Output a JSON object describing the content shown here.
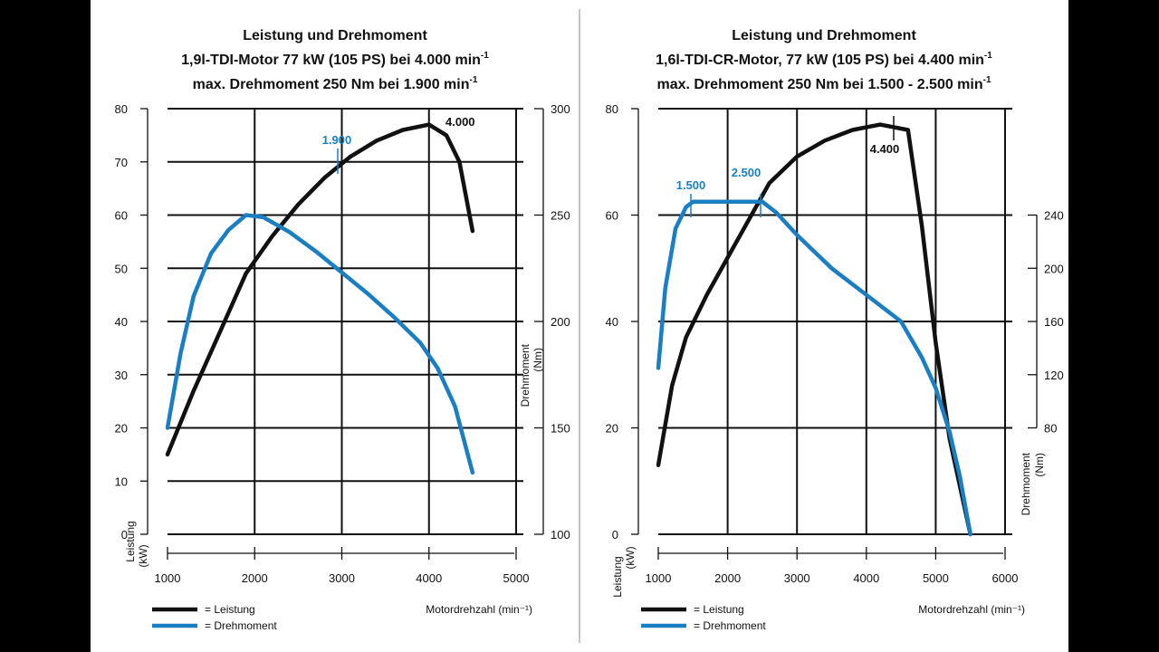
{
  "colors": {
    "power": "#111111",
    "torque": "#1a7fc2",
    "grid": "#111111",
    "divider": "#8a8a8a"
  },
  "chart_data": [
    {
      "type": "line",
      "title": "Leistung und Drehmoment",
      "subtitle_main": "1,9l-TDI-Motor 77 kW (105 PS) bei 4.000 min",
      "subtitle_sup": "-1",
      "subtitle2_main": "max. Drehmoment 250 Nm bei 1.900 min",
      "subtitle2_sup": "-1",
      "xlabel": "Motordrehzahl (min⁻¹)",
      "ylabel_left_1": "Leistung",
      "ylabel_left_2": "(kW)",
      "ylabel_right_1": "Drehmoment",
      "ylabel_right_2": "(Nm)",
      "xlim": [
        1000,
        5000
      ],
      "x_ticks": [
        "1000",
        "2000",
        "3000",
        "4000",
        "5000"
      ],
      "ylim_left": [
        0,
        80
      ],
      "y_ticks_left": [
        "0",
        "10",
        "20",
        "30",
        "40",
        "50",
        "60",
        "70",
        "80"
      ],
      "ylim_right": [
        100,
        300
      ],
      "y_ticks_right": [
        "100",
        "150",
        "200",
        "250",
        "300"
      ],
      "legend_power": "= Leistung",
      "legend_torque": "= Drehmoment",
      "series": [
        {
          "name": "Leistung",
          "axis": "left",
          "x": [
            1000,
            1300,
            1600,
            1900,
            2200,
            2500,
            2800,
            3100,
            3400,
            3700,
            4000,
            4200,
            4350,
            4500
          ],
          "y": [
            15,
            27,
            38,
            49,
            56,
            62,
            67,
            71,
            74,
            76,
            77,
            75,
            70,
            57
          ]
        },
        {
          "name": "Drehmoment",
          "axis": "right",
          "x": [
            1000,
            1150,
            1300,
            1500,
            1700,
            1900,
            2100,
            2400,
            2700,
            3000,
            3300,
            3600,
            3900,
            4100,
            4300,
            4500
          ],
          "y": [
            150,
            185,
            212,
            232,
            243,
            250,
            249,
            242,
            233,
            223,
            213,
            202,
            190,
            178,
            160,
            129
          ]
        }
      ],
      "annotations": [
        {
          "text": "1.900",
          "color": "torque"
        },
        {
          "text": "4.000",
          "color": "power"
        }
      ]
    },
    {
      "type": "line",
      "title": "Leistung und Drehmoment",
      "subtitle_main": "1,6l-TDI-CR-Motor, 77 kW (105 PS) bei 4.400 min",
      "subtitle_sup": "-1",
      "subtitle2_main": "max. Drehmoment 250 Nm bei 1.500 - 2.500 min",
      "subtitle2_sup": "-1",
      "xlabel": "Motordrehzahl (min⁻¹)",
      "ylabel_left_1": "Leistung",
      "ylabel_left_2": "(kW)",
      "ylabel_right_1": "Drehmoment",
      "ylabel_right_2": "(Nm)",
      "xlim": [
        1000,
        6000
      ],
      "x_ticks": [
        "1000",
        "2000",
        "3000",
        "4000",
        "5000",
        "6000"
      ],
      "ylim_left": [
        0,
        80
      ],
      "y_ticks_left": [
        "0",
        "20",
        "40",
        "60",
        "80"
      ],
      "ylim_right": [
        0,
        320
      ],
      "y_ticks_right": [
        "80",
        "120",
        "160",
        "200",
        "240"
      ],
      "legend_power": "= Leistung",
      "legend_torque": "= Drehmoment",
      "series": [
        {
          "name": "Leistung",
          "axis": "left",
          "x": [
            1000,
            1200,
            1400,
            1700,
            2000,
            2300,
            2600,
            3000,
            3400,
            3800,
            4200,
            4600,
            4800,
            5000,
            5200,
            5500
          ],
          "y": [
            13,
            28,
            37,
            45,
            52,
            59,
            66,
            71,
            74,
            76,
            77,
            76,
            58,
            36,
            18,
            0
          ]
        },
        {
          "name": "Drehmoment",
          "axis": "right",
          "x": [
            1000,
            1100,
            1250,
            1400,
            1500,
            2000,
            2500,
            2700,
            3000,
            3500,
            4000,
            4500,
            4800,
            5000,
            5200,
            5350,
            5500
          ],
          "y": [
            125,
            185,
            230,
            246,
            250,
            250,
            250,
            242,
            225,
            200,
            180,
            160,
            133,
            110,
            77,
            43,
            0
          ]
        }
      ],
      "annotations": [
        {
          "text": "1.500",
          "color": "torque"
        },
        {
          "text": "2.500",
          "color": "torque"
        },
        {
          "text": "4.400",
          "color": "power"
        }
      ]
    }
  ]
}
